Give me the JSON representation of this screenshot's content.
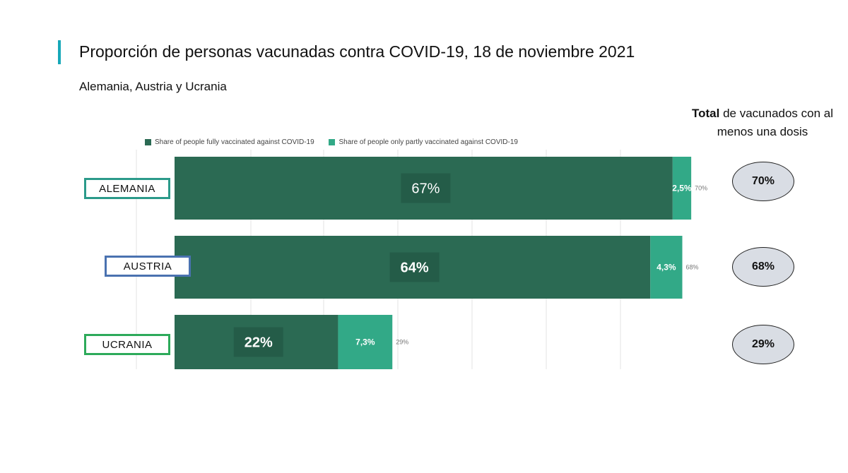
{
  "header": {
    "title": "Proporción de personas vacunadas contra COVID-19, 18 de noviembre 2021",
    "subtitle": "Alemania, Austria y Ucrania"
  },
  "totals_heading": {
    "bold": "Total",
    "rest": " de vacunados con al menos una dosis"
  },
  "colors": {
    "accent": "#17a8b8",
    "fully": "#2b6a53",
    "partly": "#32a987",
    "bubble": "#d9dde4"
  },
  "chart_data": {
    "type": "bar",
    "orientation": "horizontal",
    "stacked": true,
    "categories": [
      "ALEMANIA",
      "AUSTRIA",
      "UCRANIA"
    ],
    "series": [
      {
        "name": "Share of people fully vaccinated against COVID-19",
        "values": [
          67,
          64,
          22
        ],
        "labels": [
          "67%",
          "64%",
          "22%"
        ]
      },
      {
        "name": "Share of people only partly vaccinated against COVID-19",
        "values": [
          2.5,
          4.3,
          7.3
        ],
        "labels": [
          "2,5%",
          "4,3%",
          "7,3%"
        ]
      }
    ],
    "end_labels": [
      "70%",
      "68%",
      "29%"
    ],
    "totals": [
      "70%",
      "68%",
      "29%"
    ],
    "xlim": [
      0,
      70
    ],
    "grid": true,
    "legend_position": "top-left"
  }
}
